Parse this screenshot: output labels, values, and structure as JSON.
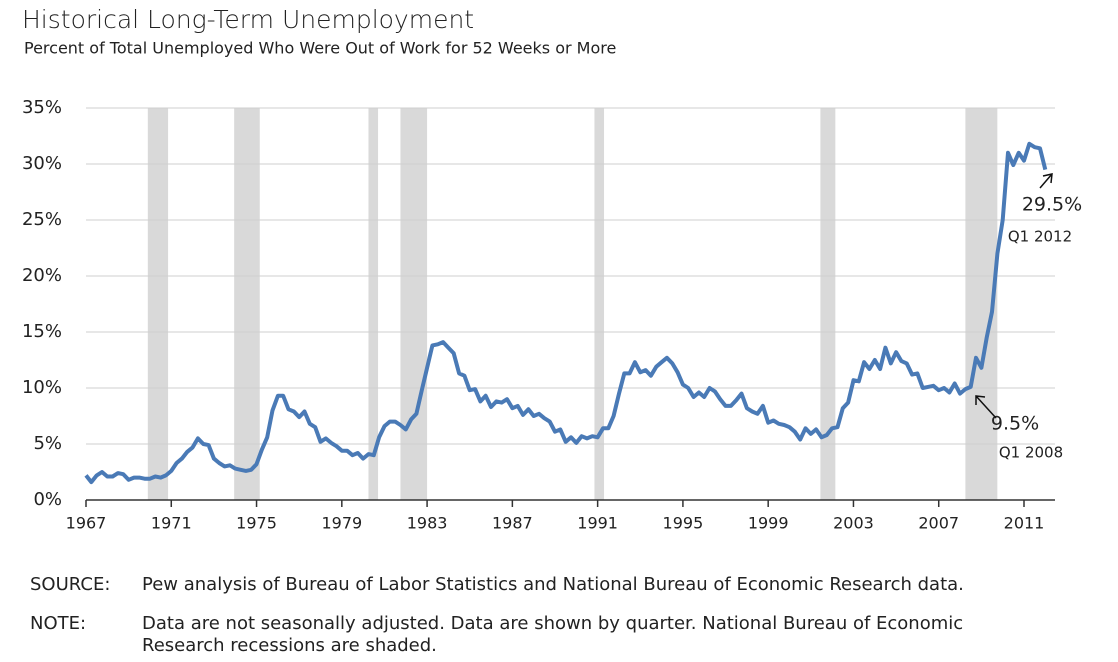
{
  "chart_data": {
    "type": "line",
    "title": "Historical Long-Term Unemployment",
    "subtitle": "Percent of Total Unemployed Who Were Out of Work for 52 Weeks or More",
    "x": [
      1967,
      1967.25,
      1967.5,
      1967.75,
      1968,
      1968.25,
      1968.5,
      1968.75,
      1969,
      1969.25,
      1969.5,
      1969.75,
      1970,
      1970.25,
      1970.5,
      1970.75,
      1971,
      1971.25,
      1971.5,
      1971.75,
      1972,
      1972.25,
      1972.5,
      1972.75,
      1973,
      1973.25,
      1973.5,
      1973.75,
      1974,
      1974.25,
      1974.5,
      1974.75,
      1975,
      1975.25,
      1975.5,
      1975.75,
      1976,
      1976.25,
      1976.5,
      1976.75,
      1977,
      1977.25,
      1977.5,
      1977.75,
      1978,
      1978.25,
      1978.5,
      1978.75,
      1979,
      1979.25,
      1979.5,
      1979.75,
      1980,
      1980.25,
      1980.5,
      1980.75,
      1981,
      1981.25,
      1981.5,
      1981.75,
      1982,
      1982.25,
      1982.5,
      1982.75,
      1983,
      1983.25,
      1983.5,
      1983.75,
      1984,
      1984.25,
      1984.5,
      1984.75,
      1985,
      1985.25,
      1985.5,
      1985.75,
      1986,
      1986.25,
      1986.5,
      1986.75,
      1987,
      1987.25,
      1987.5,
      1987.75,
      1988,
      1988.25,
      1988.5,
      1988.75,
      1989,
      1989.25,
      1989.5,
      1989.75,
      1990,
      1990.25,
      1990.5,
      1990.75,
      1991,
      1991.25,
      1991.5,
      1991.75,
      1992,
      1992.25,
      1992.5,
      1992.75,
      1993,
      1993.25,
      1993.5,
      1993.75,
      1994,
      1994.25,
      1994.5,
      1994.75,
      1995,
      1995.25,
      1995.5,
      1995.75,
      1996,
      1996.25,
      1996.5,
      1996.75,
      1997,
      1997.25,
      1997.5,
      1997.75,
      1998,
      1998.25,
      1998.5,
      1998.75,
      1999,
      1999.25,
      1999.5,
      1999.75,
      2000,
      2000.25,
      2000.5,
      2000.75,
      2001,
      2001.25,
      2001.5,
      2001.75,
      2002,
      2002.25,
      2002.5,
      2002.75,
      2003,
      2003.25,
      2003.5,
      2003.75,
      2004,
      2004.25,
      2004.5,
      2004.75,
      2005,
      2005.25,
      2005.5,
      2005.75,
      2006,
      2006.25,
      2006.5,
      2006.75,
      2007,
      2007.25,
      2007.5,
      2007.75,
      2008,
      2008.25,
      2008.5,
      2008.75,
      2009,
      2009.25,
      2009.5,
      2009.75,
      2010,
      2010.25,
      2010.5,
      2010.75,
      2011,
      2011.25,
      2011.5,
      2011.75,
      2012
    ],
    "series": [
      {
        "color": "#4a7ab6",
        "values": [
          2.2,
          1.6,
          2.2,
          2.5,
          2.1,
          2.1,
          2.4,
          2.3,
          1.8,
          2.0,
          2.0,
          1.9,
          1.9,
          2.1,
          2.0,
          2.2,
          2.6,
          3.3,
          3.7,
          4.3,
          4.7,
          5.5,
          5.0,
          4.9,
          3.7,
          3.3,
          3.0,
          3.1,
          2.8,
          2.7,
          2.6,
          2.7,
          3.2,
          4.5,
          5.6,
          8.0,
          9.3,
          9.3,
          8.1,
          7.9,
          7.4,
          7.9,
          6.8,
          6.5,
          5.2,
          5.5,
          5.1,
          4.8,
          4.4,
          4.4,
          4.0,
          4.2,
          3.7,
          4.1,
          4.0,
          5.6,
          6.6,
          7.0,
          7.0,
          6.7,
          6.3,
          7.2,
          7.7,
          9.8,
          11.8,
          13.8,
          13.9,
          14.1,
          13.6,
          13.1,
          11.3,
          11.1,
          9.8,
          9.9,
          8.8,
          9.3,
          8.3,
          8.8,
          8.7,
          9.0,
          8.2,
          8.4,
          7.6,
          8.1,
          7.5,
          7.7,
          7.3,
          7.0,
          6.1,
          6.3,
          5.2,
          5.6,
          5.1,
          5.7,
          5.5,
          5.7,
          5.6,
          6.4,
          6.4,
          7.5,
          9.5,
          11.3,
          11.3,
          12.3,
          11.4,
          11.6,
          11.1,
          11.9,
          12.3,
          12.7,
          12.2,
          11.4,
          10.3,
          10.0,
          9.2,
          9.6,
          9.2,
          10.0,
          9.7,
          9.0,
          8.4,
          8.4,
          8.9,
          9.5,
          8.2,
          7.9,
          7.7,
          8.4,
          6.9,
          7.1,
          6.8,
          6.7,
          6.5,
          6.1,
          5.4,
          6.4,
          5.9,
          6.3,
          5.6,
          5.8,
          6.4,
          6.5,
          8.2,
          8.7,
          10.7,
          10.6,
          12.3,
          11.7,
          12.5,
          11.7,
          13.6,
          12.2,
          13.2,
          12.4,
          12.2,
          11.2,
          11.3,
          10.0,
          10.1,
          10.2,
          9.8,
          10.0,
          9.6,
          10.4,
          9.5,
          9.9,
          10.1,
          12.7,
          11.8,
          14.5,
          16.8,
          22.0,
          25.0,
          31.0,
          29.9,
          31.0,
          30.3,
          31.8,
          31.5,
          31.4,
          29.5
        ]
      }
    ],
    "recessions": [
      [
        1969.9,
        1970.85
      ],
      [
        1973.95,
        1975.15
      ],
      [
        1980.25,
        1980.7
      ],
      [
        1981.75,
        1983.0
      ],
      [
        1990.85,
        1991.3
      ],
      [
        2001.45,
        2002.15
      ],
      [
        2008.25,
        2009.75
      ]
    ],
    "recession_color": "#d9d9d9",
    "xlim": [
      1967,
      2012.4
    ],
    "xticks": [
      1967,
      1971,
      1975,
      1979,
      1983,
      1987,
      1991,
      1995,
      1999,
      2003,
      2007,
      2011
    ],
    "ylim": [
      0,
      35
    ],
    "yticks": [
      {
        "value": 0,
        "label": "0%"
      },
      {
        "value": 5,
        "label": "5%"
      },
      {
        "value": 10,
        "label": "10%"
      },
      {
        "value": 15,
        "label": "15%"
      },
      {
        "value": 20,
        "label": "20%"
      },
      {
        "value": 25,
        "label": "25%"
      },
      {
        "value": 30,
        "label": "30%"
      },
      {
        "value": 35,
        "label": "35%"
      }
    ],
    "grid": true,
    "annotations": [
      "29.5%",
      "Q1 2012",
      "9.5%",
      "Q1 2008"
    ]
  },
  "footer": {
    "source_label": "SOURCE:",
    "source": "Pew analysis of Bureau of Labor Statistics  and National Bureau of Economic Research data.",
    "note_label": "NOTE:",
    "note": "Data are not seasonally adjusted. Data are shown by quarter. National Bureau of Economic Research recessions are shaded."
  }
}
